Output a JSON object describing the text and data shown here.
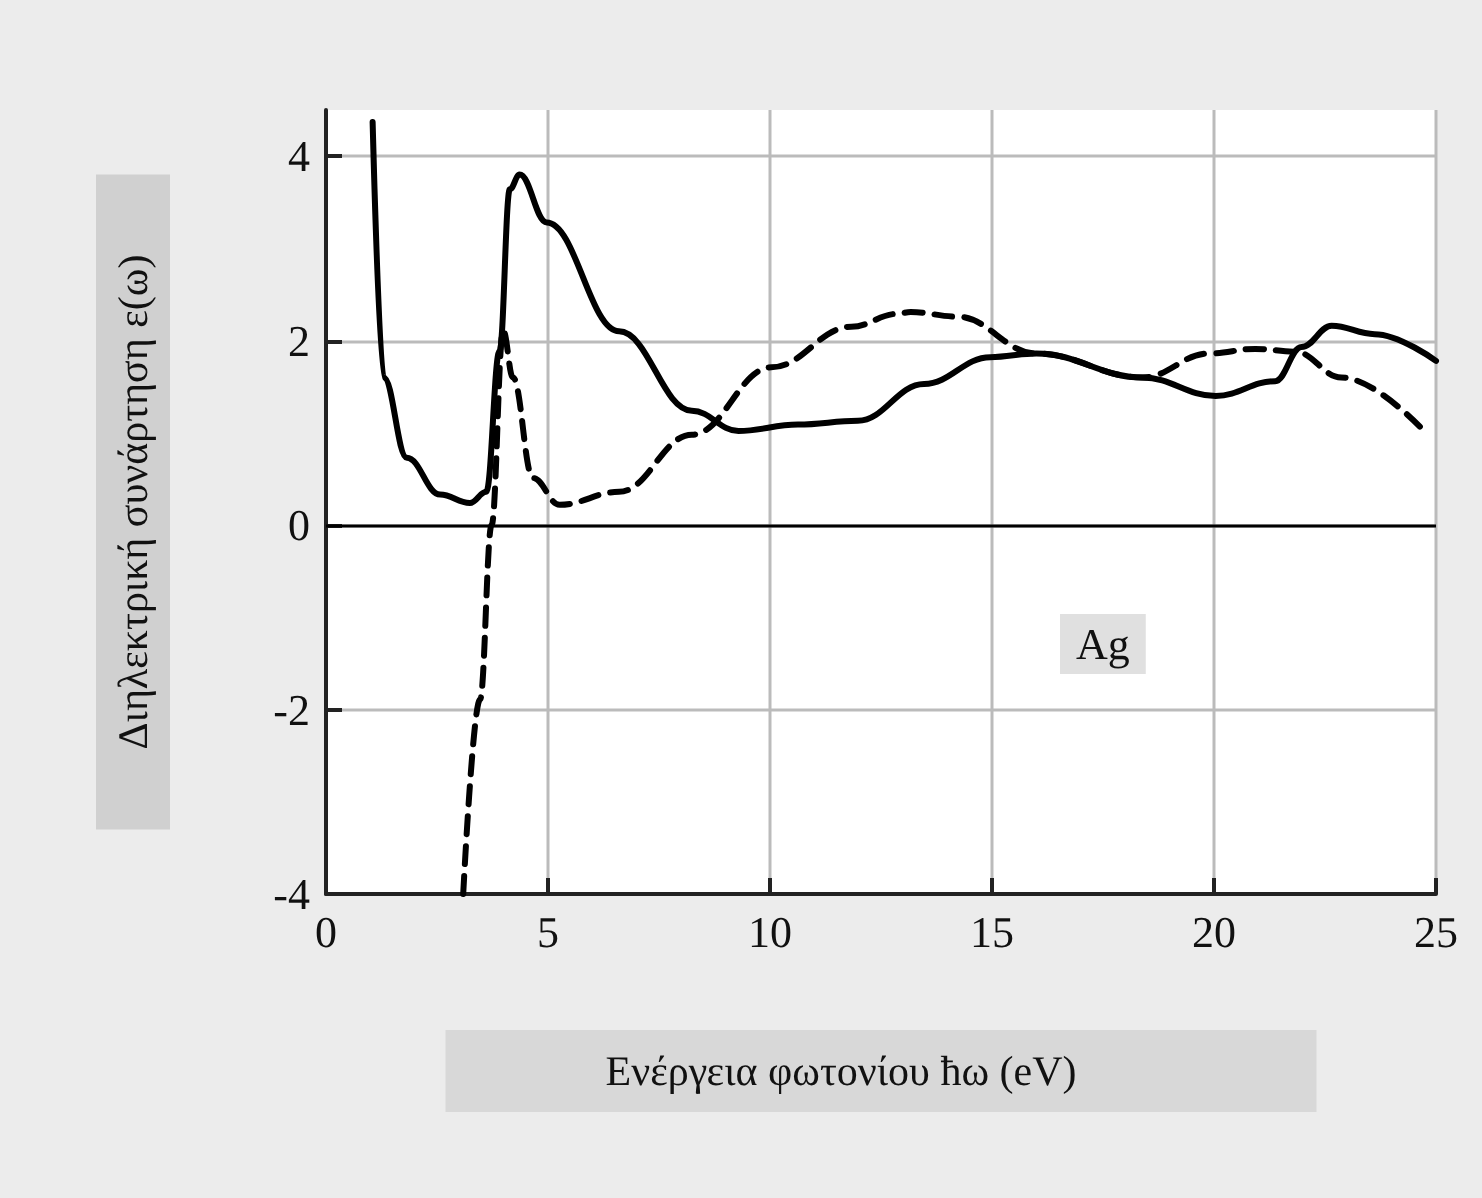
{
  "chart_data": {
    "type": "line",
    "xlabel": "Ενέργεια φωτονίου ħω (eV)",
    "ylabel": "Διηλεκτρική συνάρτηση ε(ω)",
    "annotations": [
      "Ag"
    ],
    "xlim": [
      0,
      25
    ],
    "xticks": [
      0,
      5,
      10,
      15,
      20,
      25
    ],
    "ylim": [
      -4,
      4.5
    ],
    "yticks": [
      -4,
      -2,
      0,
      2,
      4
    ],
    "grid": true,
    "marker": "none",
    "ref_lines": [
      {
        "axis": "y",
        "value": 0,
        "color": "#000000"
      }
    ],
    "series": [
      {
        "color": "#000000",
        "line_style": "solid",
        "x": [
          1.05,
          1.3,
          1.82,
          2.57,
          3.24,
          3.61,
          3.91,
          4.14,
          4.36,
          4.97,
          6.6,
          8.24,
          9.29,
          10.63,
          11.98,
          13.47,
          14.96,
          16.0,
          18.39,
          20.04,
          21.38,
          21.97,
          22.65,
          23.62,
          25
        ],
        "values": [
          4.37,
          1.6,
          0.73,
          0.33,
          0.24,
          0.36,
          1.89,
          3.64,
          3.8,
          3.28,
          2.1,
          1.24,
          1.02,
          1.09,
          1.13,
          1.53,
          1.82,
          1.86,
          1.6,
          1.4,
          1.56,
          1.93,
          2.16,
          2.07,
          1.78
        ]
      },
      {
        "color": "#000000",
        "line_style": "dashed",
        "x": [
          3.09,
          3.47,
          3.73,
          3.99,
          4.21,
          4.66,
          5.26,
          6.6,
          8.24,
          10.03,
          11.83,
          12.87,
          13.17,
          14.21,
          16.0,
          18.39,
          19.89,
          20.93,
          21.83,
          22.87,
          24.81
        ],
        "values": [
          -4,
          -1.89,
          0,
          2.11,
          1.6,
          0.51,
          0.22,
          0.36,
          0.98,
          1.71,
          2.15,
          2.29,
          2.31,
          2.26,
          1.86,
          1.6,
          1.86,
          1.91,
          1.88,
          1.6,
          0.98
        ]
      }
    ]
  }
}
